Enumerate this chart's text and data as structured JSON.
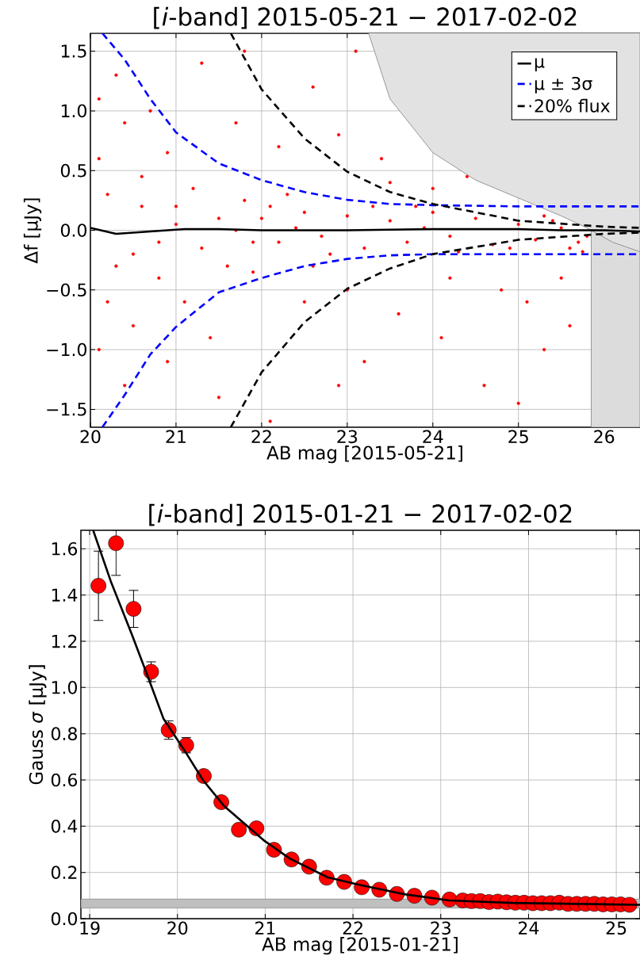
{
  "chart_data": [
    {
      "type": "scatter",
      "title": "[*i*-band]   2015-05-21 − 2017-02-02",
      "xlabel": "AB mag [2015-05-21]",
      "ylabel": "Δf  [μJy]",
      "xlim": [
        20,
        26.42
      ],
      "ylim": [
        -1.65,
        1.65
      ],
      "xticks": [
        20,
        21,
        22,
        23,
        24,
        25,
        26
      ],
      "yticks": [
        {
          "value": -1.5,
          "label": "−1.5"
        },
        {
          "value": -1.0,
          "label": "−1.0"
        },
        {
          "value": -0.5,
          "label": "−0.5"
        },
        {
          "value": 0,
          "label": "0.0"
        },
        {
          "value": 0.5,
          "label": "0.5"
        },
        {
          "value": 1.0,
          "label": "1.0"
        },
        {
          "value": 1.5,
          "label": "1.5"
        }
      ],
      "grid": true,
      "legend": "top right",
      "bands": [
        {
          "axis": "x",
          "from": 25.85,
          "to": 26.42,
          "color": "#dcdcdc"
        }
      ],
      "series": [
        {
          "type": "area",
          "color": "#e2e2e2",
          "x": [
            23.25,
            23.5,
            24,
            24.5,
            25,
            25.5,
            25.8,
            26.1,
            26.42
          ],
          "values": [
            1.65,
            1.1,
            0.65,
            0.42,
            0.27,
            0.12,
            0.02,
            -0.1,
            -0.18
          ]
        },
        {
          "color": "#ff0000",
          "marker": "circle",
          "x": [
            22,
            22.2,
            22.5,
            22.7,
            23,
            23.2,
            23.5,
            23.7,
            24,
            24.2,
            24.5,
            24.7,
            25,
            25.2,
            25.5,
            25.7,
            25.8,
            23.8,
            24.3,
            23.3,
            22.8,
            25.4,
            24.9,
            23.9,
            22.4,
            21.5,
            21.3,
            21,
            20.5,
            20.2,
            20.3,
            20.6,
            20.8,
            21.2,
            21.6,
            21.8,
            20.1,
            20.4,
            20.2,
            20.5,
            20.9,
            21.1,
            21.9,
            22.3,
            22.6,
            20.1,
            20.3,
            20.1,
            20.4,
            20.7,
            20.9,
            21.3,
            21.8,
            21.5,
            22.1,
            22.6,
            22.9,
            23.1,
            23.4,
            23.6,
            23.2,
            24.1,
            24.4,
            24.6,
            25.1,
            25.3,
            25.6,
            24.8,
            23,
            22.5,
            22.2,
            21.7,
            21.4,
            24.2,
            25.5,
            23.5,
            24,
            25,
            22.9,
            20.6,
            20.8,
            21,
            21.7,
            21.9,
            22.1,
            25.6,
            25.75,
            25.3
          ],
          "values": [
            0.1,
            -0.1,
            0.15,
            -0.05,
            0.12,
            -0.15,
            0.08,
            -0.1,
            0.15,
            -0.05,
            0.1,
            -0.12,
            0.05,
            -0.08,
            0.02,
            -0.1,
            -0.05,
            0.2,
            -0.18,
            0.2,
            -0.2,
            0.08,
            -0.15,
            0.02,
            0.02,
            0.1,
            -0.15,
            0.2,
            -0.2,
            0.3,
            -0.3,
            0.45,
            -0.4,
            0.35,
            -0.3,
            0.25,
            0.6,
            0.9,
            -0.6,
            -0.8,
            0.65,
            -0.6,
            -0.35,
            0.3,
            -0.3,
            1.1,
            1.3,
            -1.0,
            -1.3,
            1.0,
            -1.1,
            1.4,
            1.5,
            -1.4,
            -1.6,
            1.2,
            0.8,
            1.5,
            0.6,
            -0.7,
            -1.1,
            -0.9,
            0.45,
            -1.3,
            -0.6,
            -1.0,
            -0.8,
            -0.5,
            -0.5,
            -0.6,
            0.7,
            0.9,
            -0.9,
            -0.4,
            -0.4,
            0.4,
            0.35,
            -1.45,
            -1.3,
            0.2,
            -0.1,
            0.05,
            0.0,
            -0.1,
            0.2,
            -0.15,
            -0.18,
            0.12
          ]
        },
        {
          "type": "line",
          "name": "μ",
          "color": "#000000",
          "line_style": "solid",
          "x": [
            20,
            20.3,
            20.7,
            21.1,
            21.5,
            22,
            23,
            24,
            25,
            25.5,
            26,
            26.42
          ],
          "values": [
            0.02,
            -0.03,
            -0.01,
            0.01,
            0.01,
            0.0,
            0.0,
            0.01,
            0.01,
            0.0,
            0.0,
            -0.01
          ]
        },
        {
          "type": "line",
          "name": "μ ± 3σ",
          "color": "#0000ff",
          "line_style": "dashed",
          "x": [
            20.14,
            20.4,
            20.7,
            21,
            21.5,
            22,
            22.5,
            23,
            23.5,
            24,
            25,
            26.42
          ],
          "values": [
            1.65,
            1.43,
            1.1,
            0.82,
            0.56,
            0.42,
            0.32,
            0.255,
            0.22,
            0.21,
            0.2,
            0.2
          ]
        },
        {
          "type": "line",
          "color": "#0000ff",
          "line_style": "dashed",
          "x": [
            20.14,
            20.4,
            20.7,
            21,
            21.5,
            22,
            22.5,
            23,
            23.5,
            24,
            25,
            26.42
          ],
          "values": [
            -1.65,
            -1.38,
            -1.04,
            -0.81,
            -0.52,
            -0.4,
            -0.3,
            -0.24,
            -0.21,
            -0.2,
            -0.2,
            -0.2
          ]
        },
        {
          "type": "line",
          "name": "20% flux",
          "color": "#000000",
          "line_style": "dashed",
          "x": [
            21.64,
            22,
            22.5,
            23,
            23.5,
            24,
            25,
            26,
            26.42
          ],
          "values": [
            1.65,
            1.18,
            0.77,
            0.49,
            0.32,
            0.22,
            0.08,
            0.03,
            0.02
          ]
        },
        {
          "type": "line",
          "color": "#000000",
          "line_style": "dashed",
          "x": [
            21.64,
            22,
            22.5,
            23,
            23.5,
            24,
            25,
            26,
            26.42
          ],
          "values": [
            -1.65,
            -1.19,
            -0.77,
            -0.49,
            -0.32,
            -0.2,
            -0.08,
            -0.03,
            -0.02
          ]
        }
      ]
    },
    {
      "type": "scatter",
      "title": "[*i*-band]   2015-01-21 − 2017-02-02",
      "xlabel": "AB mag [2015-01-21]",
      "ylabel": "Gauss *σ* [μJy]",
      "xlim": [
        18.9,
        25.27
      ],
      "ylim": [
        0,
        1.68
      ],
      "xticks": [
        19,
        20,
        21,
        22,
        23,
        24,
        25
      ],
      "yticks": [
        {
          "value": 0,
          "label": "0.0"
        },
        {
          "value": 0.2,
          "label": "0.2"
        },
        {
          "value": 0.4,
          "label": "0.4"
        },
        {
          "value": 0.6,
          "label": "0.6"
        },
        {
          "value": 0.8,
          "label": "0.8"
        },
        {
          "value": 1.0,
          "label": "1.0"
        },
        {
          "value": 1.2,
          "label": "1.2"
        },
        {
          "value": 1.4,
          "label": "1.4"
        },
        {
          "value": 1.6,
          "label": "1.6"
        }
      ],
      "grid": true,
      "bands": [
        {
          "axis": "y",
          "from": 0.045,
          "to": 0.085,
          "color": "#bfbfbf"
        }
      ],
      "series": [
        {
          "color": "#ff0000",
          "marker": "circle",
          "x": [
            19.1,
            19.3,
            19.5,
            19.7,
            19.9,
            20.1,
            20.3,
            20.5,
            20.7,
            20.9,
            21.1,
            21.3,
            21.5,
            21.7,
            21.9,
            22.1,
            22.3,
            22.5,
            22.7,
            22.9,
            23.1,
            23.25,
            23.35,
            23.45,
            23.55,
            23.65,
            23.75,
            23.85,
            23.95,
            24.05,
            24.15,
            24.25,
            24.35,
            24.45,
            24.55,
            24.65,
            24.75,
            24.85,
            24.95,
            25.05,
            25.15
          ],
          "values": [
            1.44,
            1.624,
            1.34,
            1.068,
            0.816,
            0.75,
            0.617,
            0.504,
            0.385,
            0.391,
            0.298,
            0.256,
            0.225,
            0.177,
            0.159,
            0.136,
            0.125,
            0.107,
            0.099,
            0.091,
            0.083,
            0.079,
            0.076,
            0.076,
            0.072,
            0.074,
            0.071,
            0.069,
            0.069,
            0.067,
            0.067,
            0.067,
            0.069,
            0.064,
            0.064,
            0.064,
            0.064,
            0.062,
            0.062,
            0.062,
            0.06
          ],
          "errors": [
            0.15,
            [
              1.485,
              1.68
            ],
            0.08,
            0.043,
            0.04,
            0.033,
            null,
            null,
            null,
            null,
            null,
            null,
            null,
            null,
            null,
            null,
            null,
            null,
            null,
            null,
            null,
            null,
            null,
            null,
            null,
            null,
            null,
            null,
            null,
            null,
            null,
            null,
            null,
            null,
            null,
            null,
            null,
            null,
            null,
            null,
            null
          ]
        },
        {
          "type": "line",
          "color": "#000000",
          "line_style": "solid",
          "x": [
            19.04,
            19.24,
            19.48,
            19.66,
            19.84,
            20.08,
            20.29,
            20.53,
            20.98,
            21.28,
            21.71,
            22.09,
            22.6,
            23.1,
            23.82,
            25.27
          ],
          "values": [
            1.68,
            1.46,
            1.23,
            1.05,
            0.866,
            0.728,
            0.6,
            0.488,
            0.34,
            0.26,
            0.179,
            0.145,
            0.105,
            0.079,
            0.068,
            0.06
          ]
        }
      ]
    }
  ]
}
